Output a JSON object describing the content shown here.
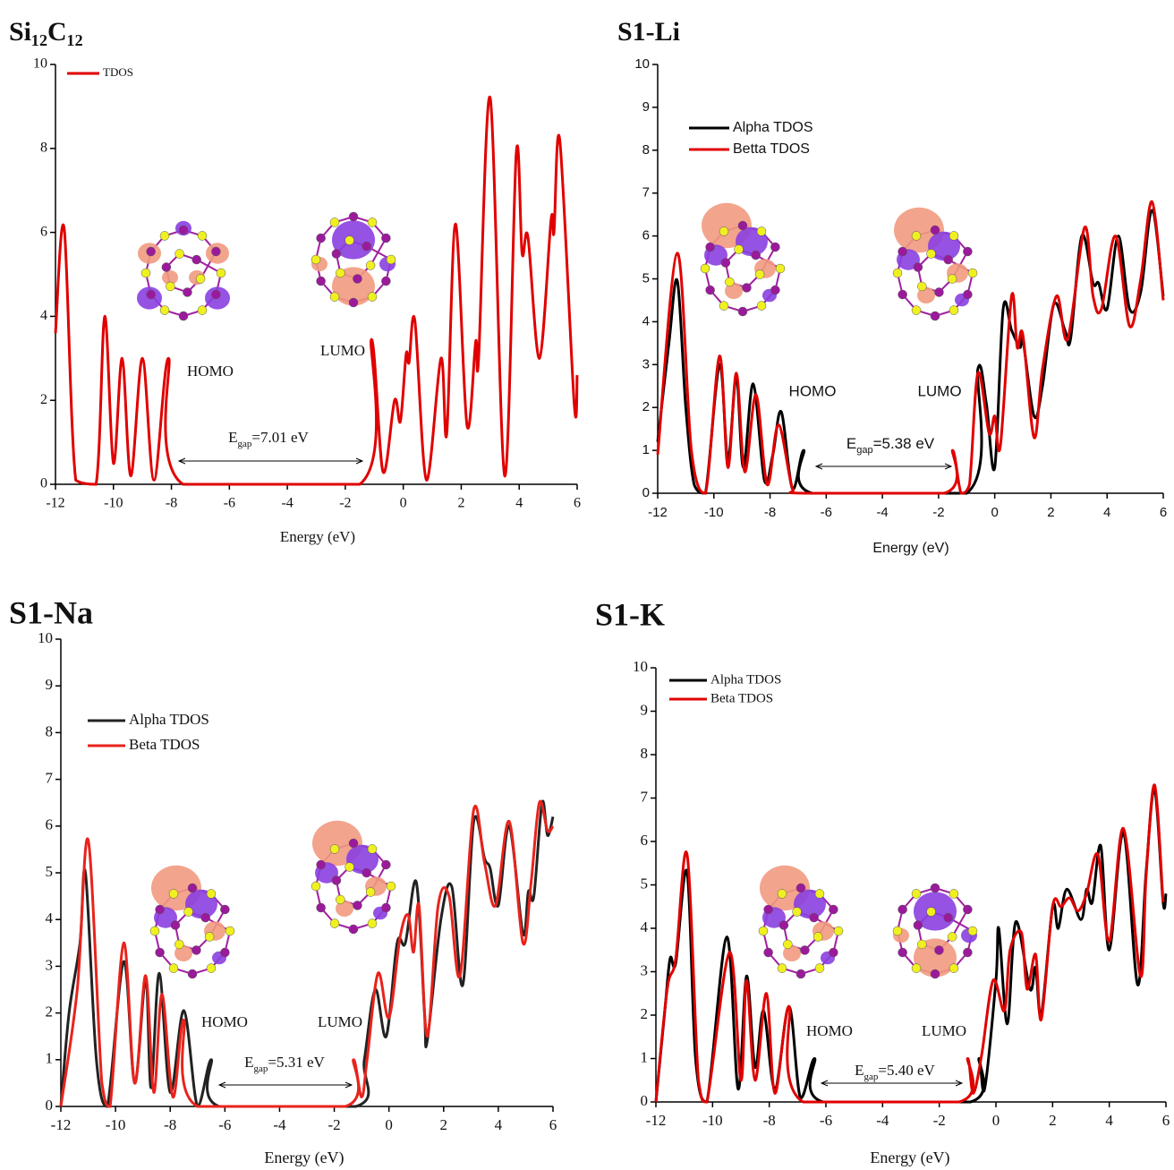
{
  "chart_data": [
    {
      "type": "line",
      "title": "Si₁₂C₁₂",
      "xlabel": "Energy (eV)",
      "xlim": [
        -12,
        6
      ],
      "ylim": [
        0,
        10
      ],
      "xticks": [
        -12,
        -10,
        -8,
        -6,
        -4,
        -2,
        0,
        2,
        4,
        6
      ],
      "yticks": [
        0,
        2,
        4,
        6,
        8,
        10
      ],
      "series": [
        {
          "name": "TDOS",
          "color": "#e00000",
          "x": [
            -12,
            -11.7,
            -11.3,
            -10.6,
            -10.3,
            -10.0,
            -9.7,
            -9.4,
            -9.0,
            -8.6,
            -8.1,
            -7.6,
            -1.5,
            -1.1,
            -0.7,
            -0.3,
            -0.1,
            0.1,
            0.2,
            0.4,
            0.8,
            1.3,
            1.5,
            1.8,
            2.2,
            2.5,
            2.6,
            3.0,
            3.5,
            3.9,
            4.1,
            4.3,
            4.7,
            5.1,
            5.2,
            5.4,
            5.9,
            6.0
          ],
          "values": [
            3.6,
            6.1,
            0.1,
            0,
            4.0,
            0.5,
            3.0,
            0.2,
            3.0,
            0.1,
            3.0,
            0,
            0,
            3.45,
            0.3,
            2.0,
            1.5,
            3.1,
            2.9,
            3.9,
            0.1,
            3.0,
            1.2,
            6.2,
            1.4,
            3.4,
            3.0,
            9.2,
            0.2,
            7.9,
            5.5,
            5.9,
            3.0,
            6.3,
            6.0,
            8.2,
            1.9,
            2.6
          ]
        }
      ],
      "annotations": {
        "homo": "HOMO",
        "lumo": "LUMO",
        "gap": {
          "symbol": "E",
          "subscript": "gap",
          "text": "=7.01 eV"
        }
      }
    },
    {
      "type": "line",
      "title": "S1-Li",
      "xlabel": "Energy (eV)",
      "xlim": [
        -12,
        6
      ],
      "ylim": [
        0,
        10
      ],
      "xticks": [
        -12,
        -10,
        -8,
        -6,
        -4,
        -2,
        0,
        2,
        4,
        6
      ],
      "yticks": [
        0,
        1,
        2,
        3,
        4,
        5,
        6,
        7,
        8,
        9,
        10
      ],
      "series": [
        {
          "name": "Alpha TDOS",
          "color": "#000000",
          "x": [
            -12,
            -11.6,
            -11.3,
            -11.0,
            -10.7,
            -10.3,
            -9.8,
            -9.5,
            -9.2,
            -8.95,
            -8.6,
            -8.2,
            -7.9,
            -7.6,
            -7.2,
            -6.8,
            -6.5,
            -1,
            -0.6,
            -0.3,
            0,
            0.3,
            0.6,
            0.9,
            1.0,
            1.4,
            1.7,
            2.1,
            2.5,
            2.7,
            3.1,
            3.5,
            3.7,
            4.0,
            4.4,
            4.8,
            5.2,
            5.6,
            6.0
          ],
          "values": [
            1.2,
            3.5,
            4.95,
            2,
            0.2,
            0,
            3.0,
            0.8,
            2.7,
            0.6,
            2.55,
            0.3,
            0.9,
            1.9,
            0.1,
            1.0,
            0,
            0,
            2.9,
            2.1,
            0.6,
            4.3,
            3.8,
            3.4,
            3.6,
            1.8,
            2.5,
            4.4,
            3.8,
            3.6,
            6.0,
            4.9,
            4.9,
            4.3,
            6.0,
            4.3,
            4.7,
            6.6,
            4.6
          ]
        },
        {
          "name": "Betta TDOS",
          "color": "#e00000",
          "x": [
            -12,
            -11.3,
            -10.8,
            -10.3,
            -9.8,
            -9.5,
            -9.2,
            -8.9,
            -8.5,
            -8.1,
            -7.7,
            -7.2,
            -6.8,
            -1.8,
            -1.5,
            -1.2,
            -0.9,
            -0.6,
            -0.2,
            0,
            0.2,
            0.6,
            0.8,
            1.0,
            1.4,
            1.7,
            2.2,
            2.6,
            3.2,
            3.5,
            3.8,
            4.3,
            4.8,
            5.2,
            5.6,
            6.0
          ],
          "values": [
            0.9,
            5.6,
            1.0,
            0,
            3.2,
            0.6,
            2.8,
            0.5,
            2.3,
            0.2,
            1.6,
            0.1,
            0,
            0,
            1.0,
            0,
            0.2,
            2.8,
            1.4,
            1.8,
            1.1,
            4.6,
            3.4,
            3.7,
            1.3,
            2.9,
            4.6,
            3.6,
            6.2,
            4.6,
            4.3,
            6.0,
            3.9,
            5.0,
            6.8,
            4.5
          ]
        }
      ],
      "annotations": {
        "homo": "HOMO",
        "lumo": "LUMO",
        "gap": {
          "symbol": "E",
          "subscript": "gap",
          "text": "=5.38 eV"
        }
      }
    },
    {
      "type": "line",
      "title": "S1-Na",
      "xlabel": "Energy (eV)",
      "xlim": [
        -12,
        6
      ],
      "ylim": [
        0,
        10
      ],
      "xticks": [
        -12,
        -10,
        -8,
        -6,
        -4,
        -2,
        0,
        2,
        4,
        6
      ],
      "yticks": [
        0,
        1,
        2,
        3,
        4,
        5,
        6,
        7,
        8,
        9,
        10
      ],
      "series": [
        {
          "name": "Alpha TDOS",
          "color": "#222222",
          "x": [
            -12,
            -11.7,
            -11.3,
            -11.1,
            -10.7,
            -10.3,
            -9.7,
            -9.3,
            -8.9,
            -8.7,
            -8.4,
            -8.0,
            -7.5,
            -7.0,
            -6.5,
            -6.2,
            -1.2,
            -0.9,
            -0.5,
            -0.1,
            0.3,
            0.6,
            1.0,
            1.3,
            1.4,
            1.9,
            2.3,
            2.7,
            3.1,
            3.5,
            3.7,
            4.0,
            4.4,
            4.9,
            5.1,
            5.3,
            5.6,
            5.8,
            6.0
          ],
          "values": [
            0,
            2.0,
            3.5,
            5.0,
            1.0,
            0,
            3.1,
            0.5,
            2.7,
            0.4,
            2.85,
            0.3,
            2.05,
            0,
            1.0,
            0,
            0,
            1.0,
            2.5,
            1.5,
            3.5,
            3.5,
            4.8,
            2.0,
            1.4,
            4.0,
            4.7,
            2.6,
            6.1,
            5.3,
            5.1,
            4.3,
            6.0,
            3.7,
            4.6,
            4.5,
            6.5,
            5.8,
            6.2
          ]
        },
        {
          "name": "Beta TDOS",
          "color": "#e8231c",
          "x": [
            -12,
            -11.4,
            -11.0,
            -10.5,
            -10.2,
            -9.7,
            -9.3,
            -8.9,
            -8.6,
            -8.3,
            -7.9,
            -7.5,
            -7.0,
            -1.6,
            -1.3,
            -1.0,
            -0.8,
            -0.4,
            0.0,
            0.4,
            0.7,
            0.9,
            1.1,
            1.4,
            1.8,
            2.2,
            2.6,
            3.1,
            3.5,
            3.9,
            4.4,
            4.9,
            5.2,
            5.5,
            5.8,
            6.0
          ],
          "values": [
            0,
            2.5,
            5.7,
            0.5,
            0,
            3.5,
            0.5,
            2.8,
            0.3,
            2.4,
            0.2,
            1.85,
            0,
            0,
            1.0,
            0.2,
            1.0,
            2.85,
            1.9,
            3.6,
            4.1,
            3.3,
            4.3,
            1.5,
            4.3,
            4.5,
            2.8,
            6.35,
            5.2,
            4.3,
            6.1,
            3.5,
            4.8,
            6.5,
            5.9,
            6.0
          ]
        }
      ],
      "annotations": {
        "homo": "HOMO",
        "lumo": "LUMO",
        "gap": {
          "symbol": "E",
          "subscript": "gap",
          "text": "=5.31 eV"
        }
      }
    },
    {
      "type": "line",
      "title": "S1-K",
      "xlabel": "Energy (eV)",
      "xlim": [
        -12,
        6
      ],
      "ylim": [
        0,
        10
      ],
      "xticks": [
        -12,
        -10,
        -8,
        -6,
        -4,
        -2,
        0,
        2,
        4,
        6
      ],
      "yticks": [
        0,
        1,
        2,
        3,
        4,
        5,
        6,
        7,
        8,
        9,
        10
      ],
      "series": [
        {
          "name": "Alpha TDOS",
          "color": "#000000",
          "x": [
            -12,
            -11.7,
            -11.5,
            -11.3,
            -10.9,
            -10.6,
            -10.2,
            -9.5,
            -9.1,
            -8.8,
            -8.5,
            -8.2,
            -7.8,
            -7.3,
            -6.9,
            -6.4,
            -6.1,
            -0.9,
            -0.6,
            -0.4,
            0,
            0.1,
            0.4,
            0.7,
            1.2,
            1.4,
            1.6,
            2.0,
            2.2,
            2.5,
            3.0,
            3.2,
            3.4,
            3.7,
            4.0,
            4.5,
            5.0,
            5.3,
            5.6,
            5.9,
            6.0
          ],
          "values": [
            0,
            2.0,
            3.3,
            3.2,
            5.3,
            1,
            0,
            3.8,
            0.3,
            2.9,
            0.8,
            2.1,
            0.3,
            2.2,
            0.1,
            1.0,
            0,
            0,
            1.0,
            0.3,
            2.8,
            4.0,
            1.8,
            4.15,
            2.6,
            3.1,
            2.0,
            4.5,
            4.0,
            4.9,
            4.2,
            4.9,
            4.6,
            5.9,
            3.5,
            6.2,
            2.7,
            5.3,
            7.2,
            4.6,
            4.8
          ]
        },
        {
          "name": "Beta TDOS",
          "color": "#e00000",
          "x": [
            -12,
            -11.6,
            -11.3,
            -10.9,
            -10.5,
            -10.2,
            -9.4,
            -9.0,
            -8.8,
            -8.5,
            -8.1,
            -7.8,
            -7.3,
            -6.8,
            -1.3,
            -1.0,
            -0.8,
            -0.5,
            -0.1,
            0.3,
            0.5,
            0.9,
            1.1,
            1.4,
            1.6,
            2.0,
            2.3,
            2.6,
            2.9,
            3.2,
            3.6,
            4.0,
            4.5,
            5.1,
            5.3,
            5.6,
            5.9
          ],
          "values": [
            0,
            2.6,
            3.3,
            5.7,
            0.5,
            0,
            3.45,
            0.5,
            2.8,
            0.5,
            2.5,
            0.2,
            2.2,
            0,
            0,
            1.0,
            0.2,
            1.1,
            2.8,
            2.1,
            3.5,
            3.9,
            2.6,
            3.4,
            1.9,
            4.5,
            4.5,
            4.7,
            4.4,
            4.8,
            5.7,
            3.7,
            6.3,
            2.9,
            5.2,
            7.3,
            4.6
          ]
        }
      ],
      "annotations": {
        "homo": "HOMO",
        "lumo": "LUMO",
        "gap": {
          "symbol": "E",
          "subscript": "gap",
          "text": "=5.40 eV"
        }
      }
    }
  ]
}
